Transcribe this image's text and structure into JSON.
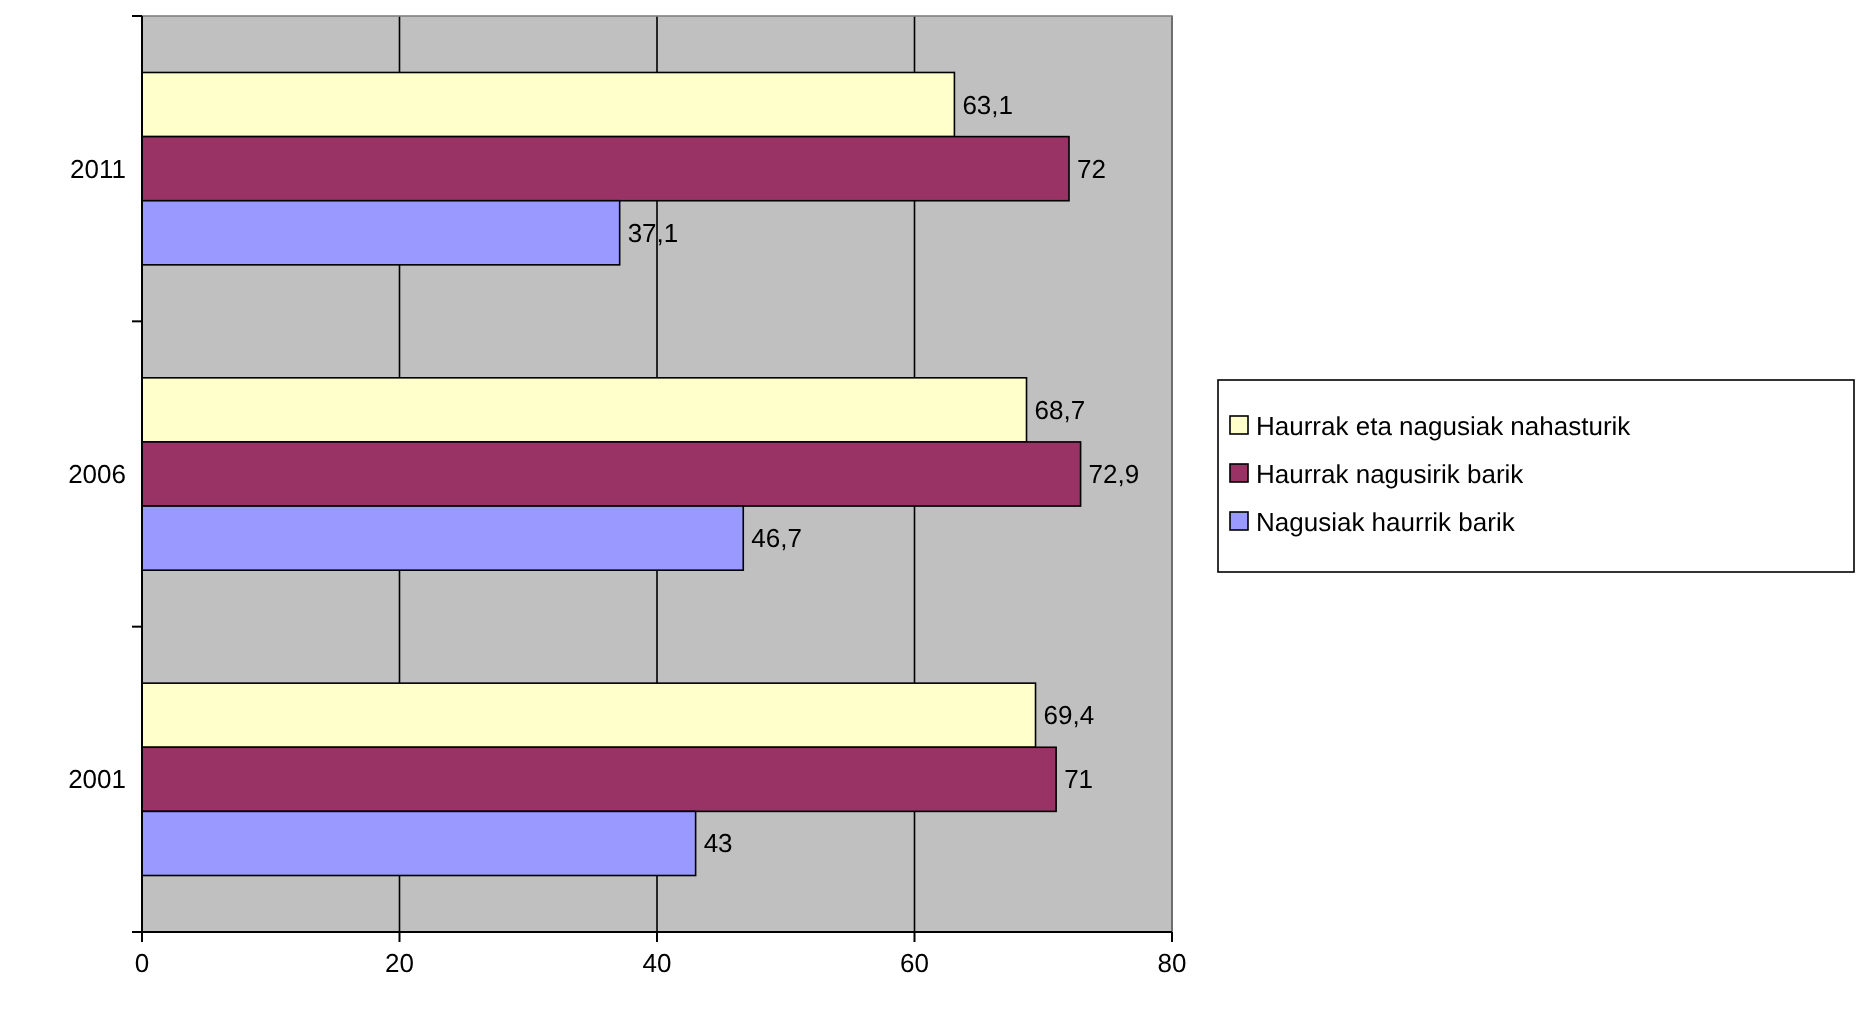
{
  "chart_data": {
    "type": "bar",
    "orientation": "horizontal",
    "categories": [
      "2011",
      "2006",
      "2001"
    ],
    "series": [
      {
        "name": "Haurrak eta nagusiak nahasturik",
        "color": "#ffffcc",
        "values": [
          63.1,
          68.7,
          69.4
        ],
        "value_labels": [
          "63,1",
          "68,7",
          "69,4"
        ]
      },
      {
        "name": "Haurrak nagusirik barik",
        "color": "#993366",
        "values": [
          72,
          72.9,
          71
        ],
        "value_labels": [
          "72",
          "72,9",
          "71"
        ]
      },
      {
        "name": "Nagusiak haurrik barik",
        "color": "#9999ff",
        "values": [
          37.1,
          46.7,
          43
        ],
        "value_labels": [
          "37,1",
          "46,7",
          "43"
        ]
      }
    ],
    "xlim": [
      0,
      80
    ],
    "xticks": [
      0,
      20,
      40,
      60,
      80
    ],
    "grid": "x",
    "legend": "right"
  }
}
